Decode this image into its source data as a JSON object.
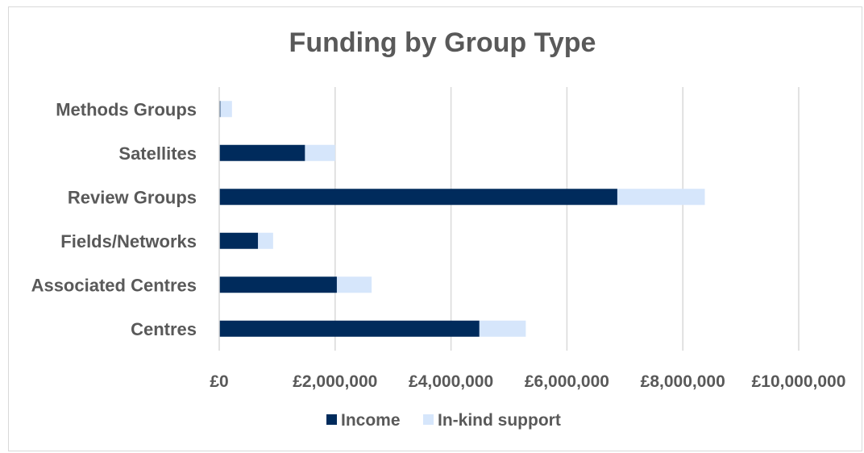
{
  "chart_data": {
    "type": "bar",
    "orientation": "horizontal",
    "stacked": true,
    "title": "Funding by Group Type",
    "categories": [
      "Methods Groups",
      "Satellites",
      "Review Groups",
      "Fields/Networks",
      "Associated Centres",
      "Centres"
    ],
    "series": [
      {
        "name": "Income",
        "color": "#002b5c",
        "values": [
          20000,
          1480000,
          6870000,
          670000,
          2030000,
          4490000
        ]
      },
      {
        "name": "In-kind support",
        "color": "#d6e6fb",
        "values": [
          200000,
          520000,
          1510000,
          260000,
          600000,
          800000
        ]
      }
    ],
    "xlim": [
      0,
      10000000
    ],
    "xticks": [
      0,
      2000000,
      4000000,
      6000000,
      8000000,
      10000000
    ],
    "xtick_labels": [
      "£0",
      "£2,000,000",
      "£4,000,000",
      "£6,000,000",
      "£8,000,000",
      "£10,000,000"
    ],
    "grid": true,
    "legend_position": "bottom"
  }
}
